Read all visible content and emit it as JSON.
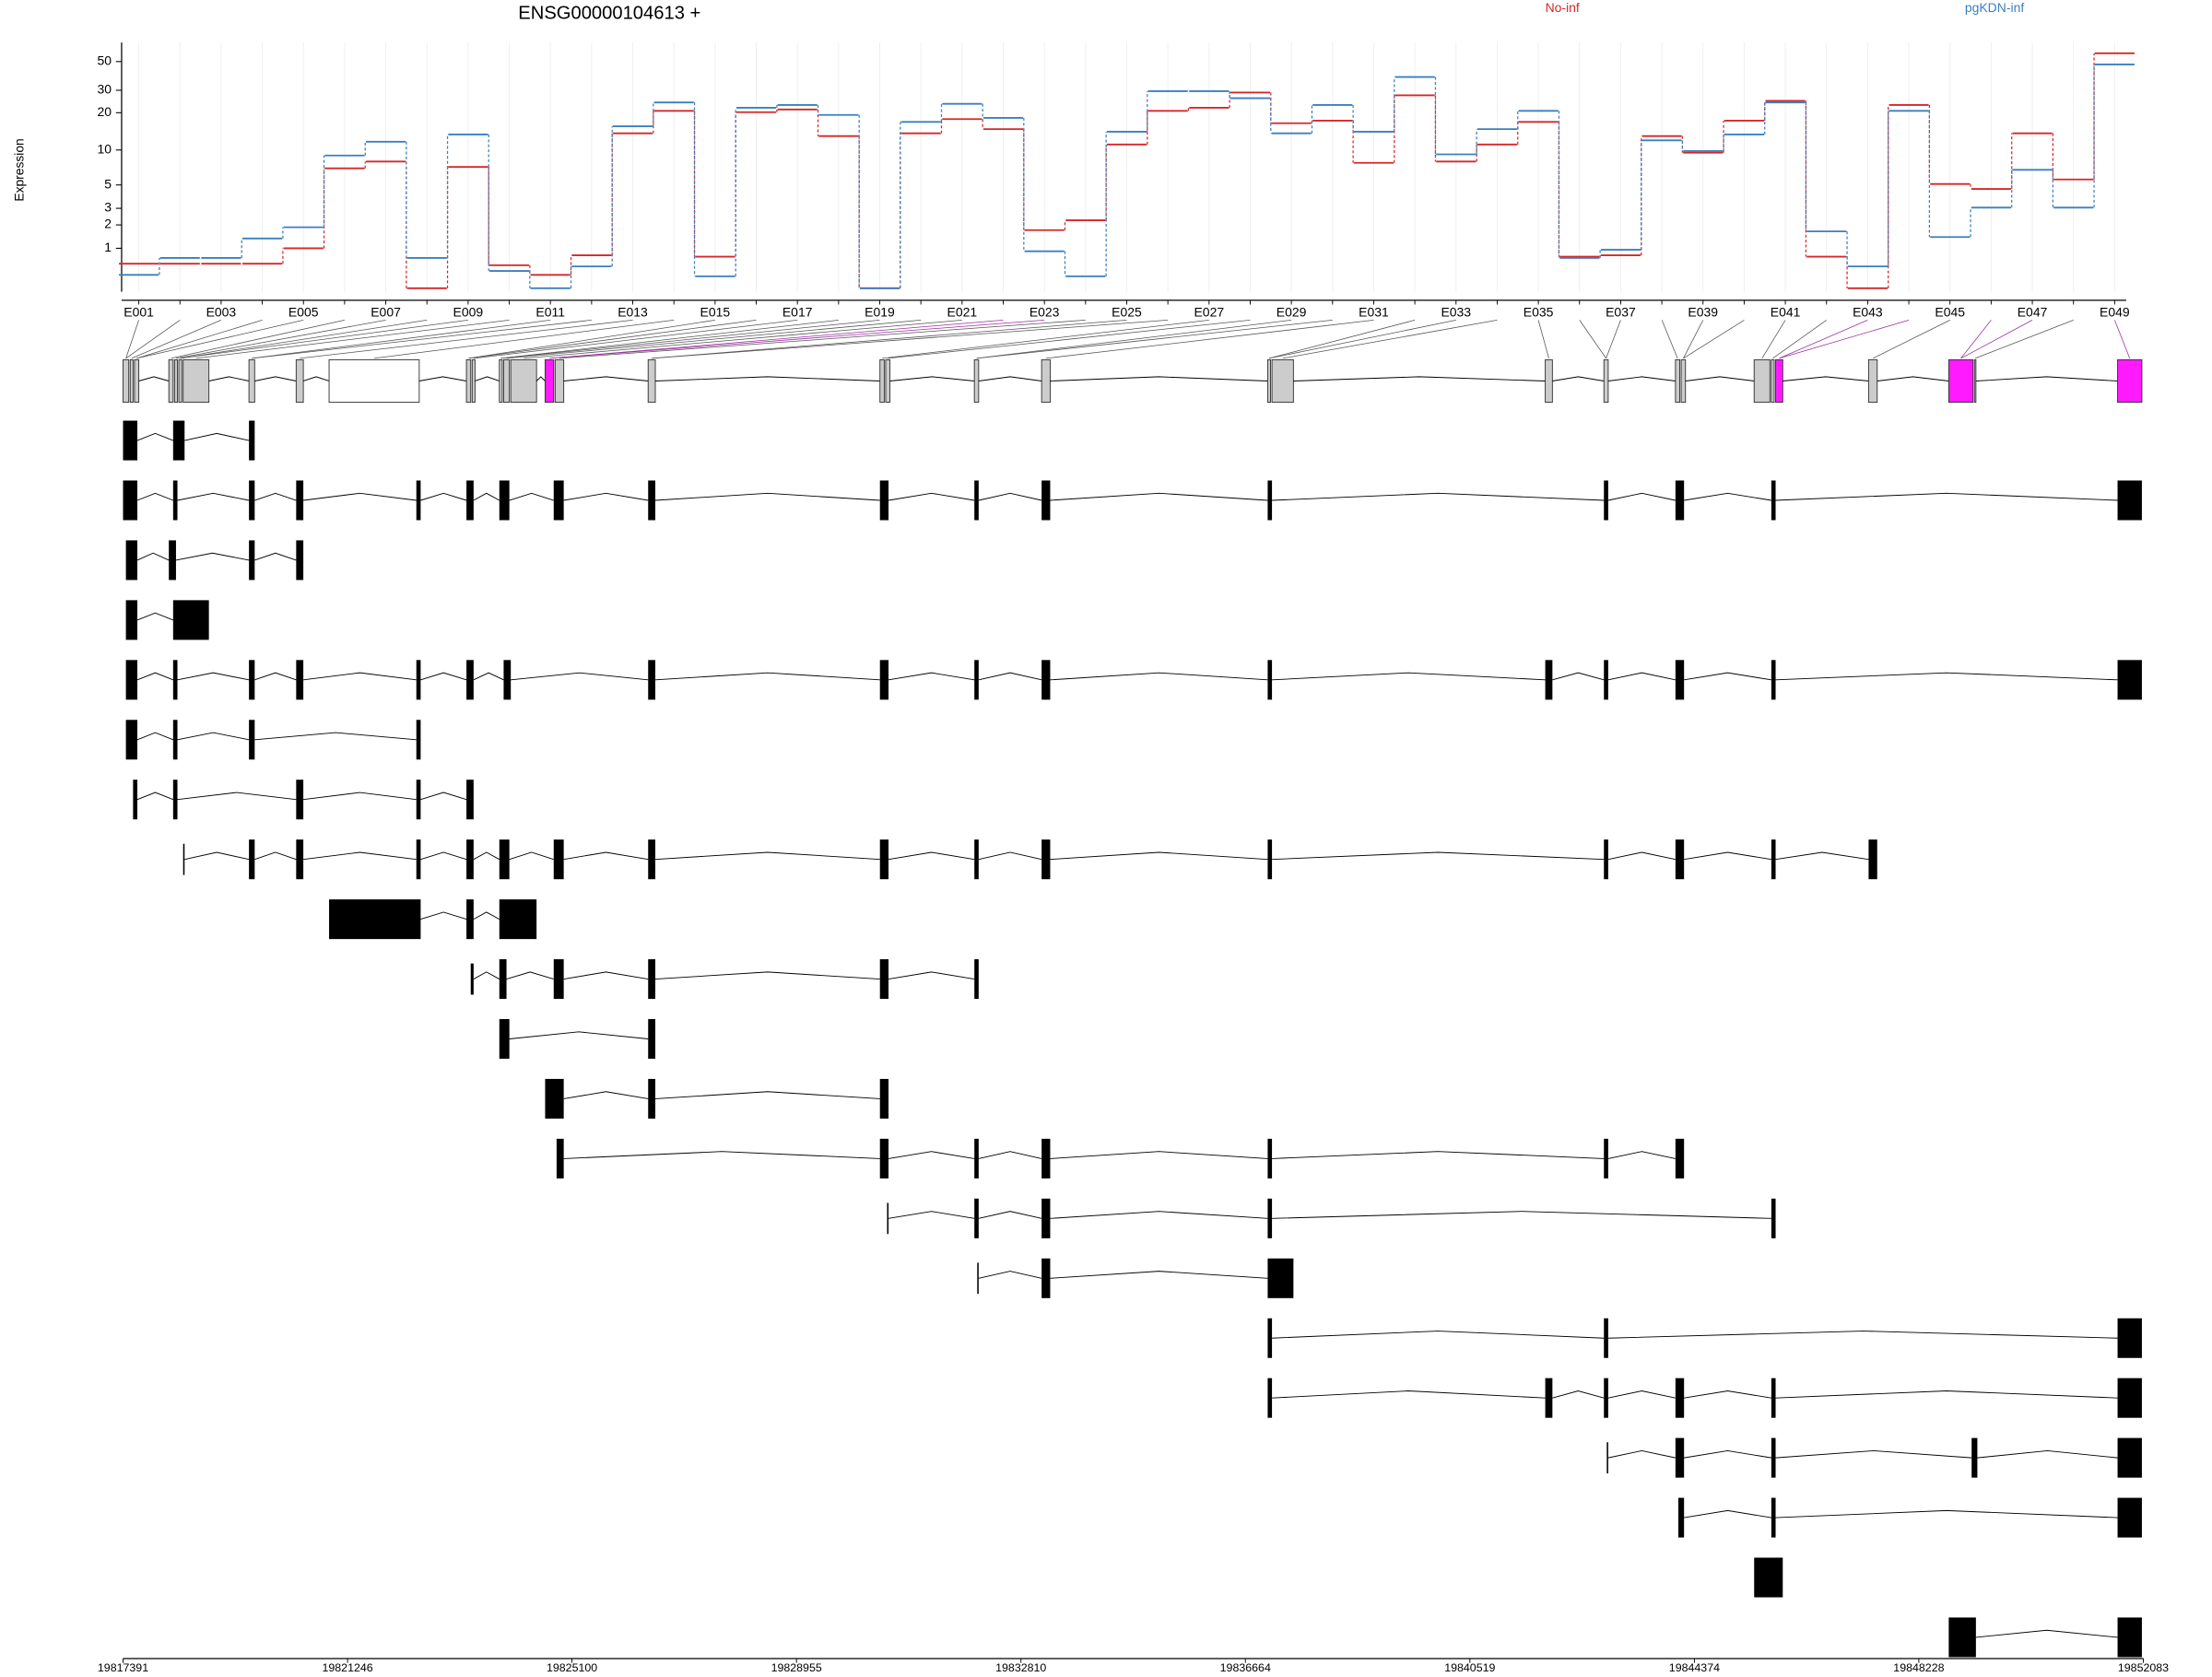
{
  "chart_data": {
    "type": "line",
    "title": "ENSG00000104613 +",
    "y_label": "Expression",
    "yscale": "log1p",
    "ylim": [
      0,
      70
    ],
    "yticks": [
      1,
      2,
      3,
      5,
      10,
      20,
      30,
      50
    ],
    "grid": true,
    "categories": [
      "E001",
      null,
      "E003",
      null,
      "E005",
      null,
      "E007",
      null,
      "E009",
      null,
      "E011",
      null,
      "E013",
      null,
      "E015",
      null,
      "E017",
      null,
      "E019",
      null,
      "E021",
      null,
      "E023",
      null,
      "E025",
      null,
      "E027",
      null,
      "E029",
      null,
      "E031",
      null,
      "E033",
      null,
      "E035",
      null,
      "E037",
      null,
      "E039",
      null,
      "E041",
      null,
      "E043",
      null,
      "E045",
      null,
      "E047",
      null,
      "E049"
    ],
    "series": [
      {
        "name": "No-inf",
        "color": "#d62728",
        "values": [
          0.53,
          0.53,
          0.53,
          0.53,
          1.0,
          7.0,
          8.0,
          0,
          7.2,
          0.49,
          0.26,
          0.77,
          13.7,
          20.7,
          0.73,
          20.2,
          21.2,
          13.0,
          0,
          13.7,
          17.8,
          14.8,
          1.74,
          2.25,
          11.1,
          20.7,
          21.9,
          28.8,
          16.5,
          17.3,
          7.8,
          27.4,
          8.0,
          11.1,
          16.9,
          0.73,
          0.77,
          13.0,
          9.5,
          17.3,
          24.8,
          0.73,
          0,
          23.0,
          5.1,
          4.6,
          13.7,
          5.6,
          57.9
        ]
      },
      {
        "name": "pgKDN-inf",
        "color": "#3a7fbf",
        "values": [
          0.26,
          0.69,
          0.69,
          1.37,
          1.88,
          9.0,
          11.7,
          0.69,
          13.4,
          0.35,
          0,
          0.46,
          15.6,
          24.1,
          0.23,
          21.9,
          23.0,
          19.2,
          0,
          16.9,
          23.5,
          18.2,
          0.9,
          0.23,
          14.1,
          29.5,
          29.5,
          26.0,
          13.7,
          23.0,
          14.1,
          38.0,
          9.2,
          14.8,
          20.7,
          0.69,
          0.95,
          12.0,
          9.8,
          13.4,
          24.1,
          1.68,
          0.46,
          20.7,
          1.43,
          3.05,
          6.8,
          3.05,
          47.5
        ]
      }
    ],
    "genome_xlim": [
      19817391,
      19852083
    ],
    "genome_xticks": [
      19817391,
      19821246,
      19825100,
      19828955,
      19832810,
      19836664,
      19840519,
      19844374,
      19848228,
      19852083
    ]
  }
}
